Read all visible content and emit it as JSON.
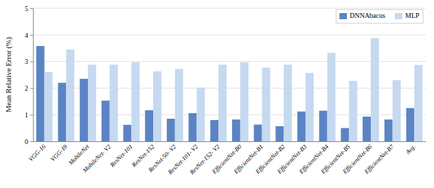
{
  "chart_data": {
    "type": "bar",
    "ylabel": "Mean Relative Error (%)",
    "categories": [
      "VGG-16",
      "VGG-19",
      "MobileNet",
      "MobileNet- V2",
      "ResNet-101",
      "ResNet-152",
      "ResNet-50- V2",
      "ResNet-101- V2",
      "ResNet-152- V2",
      "EfficientNet-B0",
      "EfficientNet-B1",
      "EfficientNet-B2",
      "EfficientNet-B3",
      "EfficientNet-B4",
      "EfficientNet-B5",
      "EfficientNet-B6",
      "EfficientNet-B7",
      "Avg."
    ],
    "series": [
      {
        "name": "DNNAbacus",
        "color": "#5b84c4",
        "values": [
          3.58,
          2.2,
          2.35,
          1.53,
          0.62,
          1.17,
          0.85,
          1.06,
          0.8,
          0.82,
          0.63,
          0.57,
          1.12,
          1.15,
          0.5,
          0.93,
          0.82,
          1.25
        ]
      },
      {
        "name": "MLP",
        "color": "#c5d9f1",
        "values": [
          2.6,
          3.45,
          2.88,
          2.88,
          2.97,
          2.63,
          2.72,
          2.02,
          2.88,
          2.97,
          2.77,
          2.88,
          2.57,
          3.32,
          2.27,
          3.88,
          2.3,
          2.87
        ]
      }
    ],
    "ylim": [
      0,
      5
    ],
    "yticks": [
      0,
      1,
      2,
      3,
      4,
      5
    ],
    "grid": true,
    "legend": "top-right"
  }
}
